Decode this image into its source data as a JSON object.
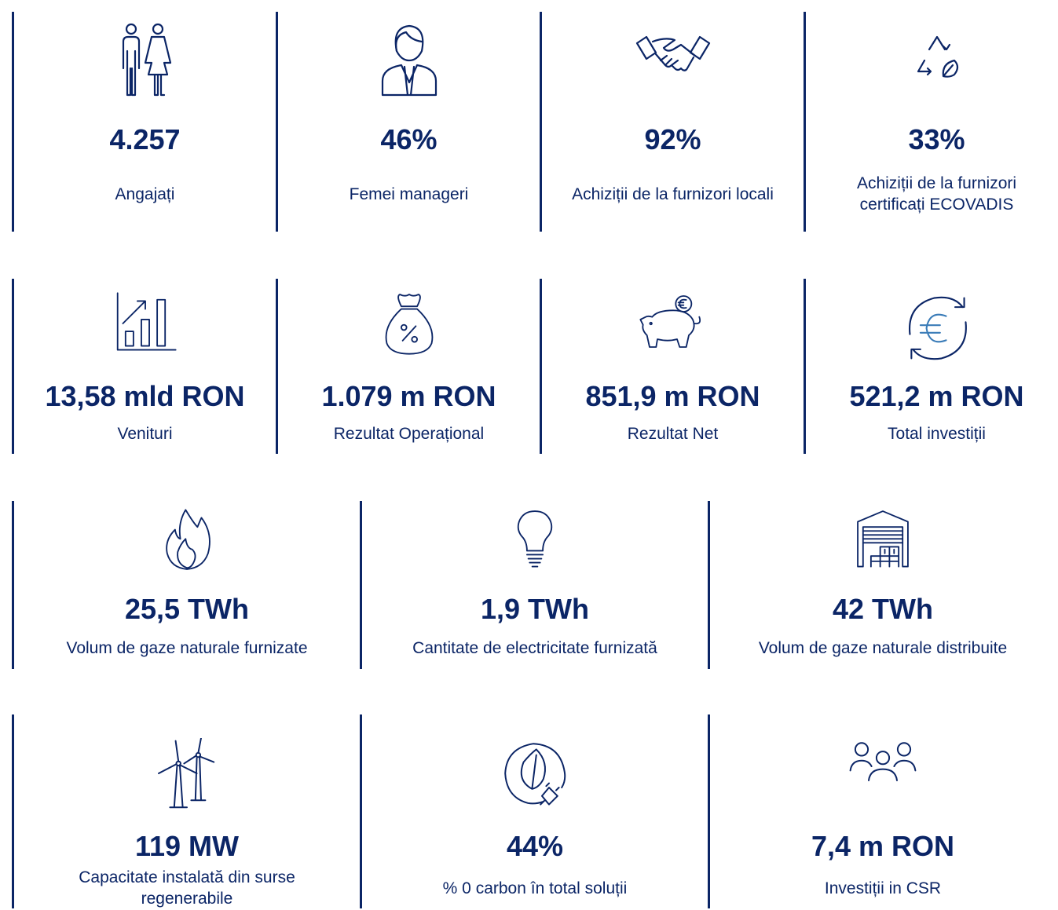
{
  "rows": [
    {
      "items": [
        {
          "value": "4.257",
          "label": "Angajați"
        },
        {
          "value": "46%",
          "label": "Femei manageri"
        },
        {
          "value": "92%",
          "label": "Achiziții de la furnizori locali"
        },
        {
          "value": "33%",
          "label": "Achiziții de la furnizori certificați ECOVADIS"
        }
      ]
    },
    {
      "items": [
        {
          "value": "13,58 mld RON",
          "label": "Venituri"
        },
        {
          "value": "1.079 m RON",
          "label": "Rezultat Operațional"
        },
        {
          "value": "851,9 m RON",
          "label": "Rezultat Net"
        },
        {
          "value": "521,2 m RON",
          "label": "Total investiții"
        }
      ]
    },
    {
      "items": [
        {
          "value": "25,5 TWh",
          "label": "Volum de gaze naturale furnizate"
        },
        {
          "value": "1,9 TWh",
          "label": "Cantitate de electricitate furnizată"
        },
        {
          "value": "42 TWh",
          "label": "Volum de gaze naturale distribuite"
        }
      ]
    },
    {
      "items": [
        {
          "value": "119 MW",
          "label": "Capacitate instalată din surse regenerabile"
        },
        {
          "value": "44%",
          "label": "% 0 carbon în total soluții"
        },
        {
          "value": "7,4 m RON",
          "label": "Investiții in CSR"
        }
      ]
    }
  ]
}
